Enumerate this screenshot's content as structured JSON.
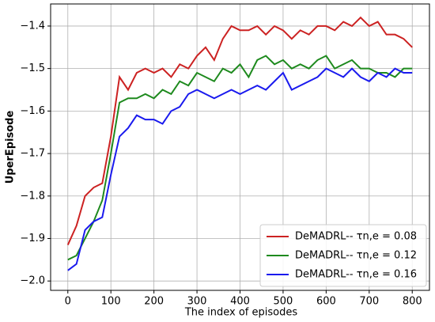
{
  "chart_data": {
    "type": "line",
    "x_label": "The index of episodes",
    "y_label": "UperEpisode",
    "x": [
      0,
      20,
      40,
      60,
      80,
      100,
      120,
      140,
      160,
      180,
      200,
      220,
      240,
      260,
      280,
      300,
      320,
      340,
      360,
      380,
      400,
      420,
      440,
      460,
      480,
      500,
      520,
      540,
      560,
      580,
      600,
      620,
      640,
      660,
      680,
      700,
      720,
      740,
      760,
      780,
      800
    ],
    "series": [
      {
        "name": "DeMADRL-- τn,e = 0.08",
        "color": "#cc2222",
        "values": [
          -1.915,
          -1.87,
          -1.8,
          -1.78,
          -1.77,
          -1.66,
          -1.52,
          -1.55,
          -1.51,
          -1.5,
          -1.51,
          -1.5,
          -1.52,
          -1.49,
          -1.5,
          -1.47,
          -1.45,
          -1.48,
          -1.43,
          -1.4,
          -1.41,
          -1.41,
          -1.4,
          -1.42,
          -1.4,
          -1.41,
          -1.43,
          -1.41,
          -1.42,
          -1.4,
          -1.4,
          -1.41,
          -1.39,
          -1.4,
          -1.38,
          -1.4,
          -1.39,
          -1.42,
          -1.42,
          -1.43,
          -1.45
        ]
      },
      {
        "name": "DeMADRL-- τn,e = 0.12",
        "color": "#1e8a1e",
        "values": [
          -1.95,
          -1.94,
          -1.9,
          -1.86,
          -1.81,
          -1.7,
          -1.58,
          -1.57,
          -1.57,
          -1.56,
          -1.57,
          -1.55,
          -1.56,
          -1.53,
          -1.54,
          -1.51,
          -1.52,
          -1.53,
          -1.5,
          -1.51,
          -1.49,
          -1.52,
          -1.48,
          -1.47,
          -1.49,
          -1.48,
          -1.5,
          -1.49,
          -1.5,
          -1.48,
          -1.47,
          -1.5,
          -1.49,
          -1.48,
          -1.5,
          -1.5,
          -1.51,
          -1.51,
          -1.52,
          -1.5,
          -1.5
        ]
      },
      {
        "name": "DeMADRL-- τn,e = 0.16",
        "color": "#1a1aee",
        "values": [
          -1.975,
          -1.96,
          -1.88,
          -1.86,
          -1.85,
          -1.75,
          -1.66,
          -1.64,
          -1.61,
          -1.62,
          -1.62,
          -1.63,
          -1.6,
          -1.59,
          -1.56,
          -1.55,
          -1.56,
          -1.57,
          -1.56,
          -1.55,
          -1.56,
          -1.55,
          -1.54,
          -1.55,
          -1.53,
          -1.51,
          -1.55,
          -1.54,
          -1.53,
          -1.52,
          -1.5,
          -1.51,
          -1.52,
          -1.5,
          -1.52,
          -1.53,
          -1.51,
          -1.52,
          -1.5,
          -1.51,
          -1.51
        ]
      }
    ],
    "xlim": [
      -40,
      840
    ],
    "ylim": [
      -2.022,
      -1.348
    ],
    "xticks": [
      0,
      100,
      200,
      300,
      400,
      500,
      600,
      700,
      800
    ],
    "yticks": [
      {
        "value": -2.0,
        "label": "−2.0"
      },
      {
        "value": -1.9,
        "label": "−1.9"
      },
      {
        "value": -1.8,
        "label": "−1.8"
      },
      {
        "value": -1.7,
        "label": "−1.7"
      },
      {
        "value": -1.6,
        "label": "−1.6"
      },
      {
        "value": -1.5,
        "label": "−1.5"
      },
      {
        "value": -1.4,
        "label": "−1.4"
      }
    ],
    "grid": true,
    "legend": "lower right"
  }
}
